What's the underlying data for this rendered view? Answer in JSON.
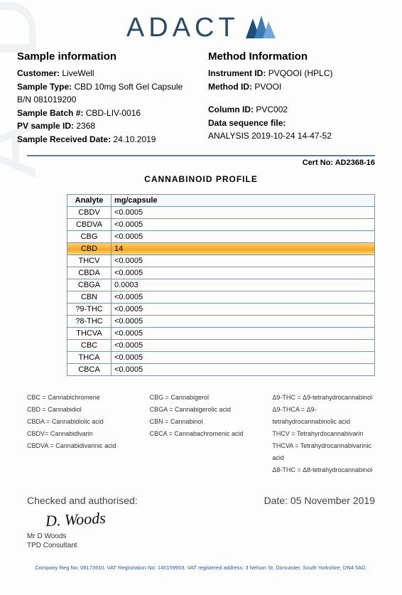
{
  "brand": {
    "name": "ADACT"
  },
  "sample": {
    "heading": "Sample information",
    "customer_label": "Customer:",
    "customer": "LiveWell",
    "type_label": "Sample Type:",
    "type": "CBD 10mg Soft Gel Capsule B/N 081019200",
    "batch_label": "Sample Batch #:",
    "batch": "CBD-LIV-0016",
    "pv_label": "PV sample ID:",
    "pv": "2368",
    "recv_label": "Sample Received Date:",
    "recv": "24.10.2019"
  },
  "method": {
    "heading": "Method Information",
    "instrument_label": "Instrument ID:",
    "instrument": "PVQOOI (HPLC)",
    "method_label": "Method ID:",
    "method_id": "PVOOI",
    "column_label": "Column ID:",
    "column": "PVC002",
    "seq_label": "Data sequence file:",
    "seq": "ANALYSIS 2019-10-24 14-47-52"
  },
  "cert": {
    "label": "Cert No:",
    "value": "AD2368-16"
  },
  "profile": {
    "title": "CANNABINOID  PROFILE",
    "header_analyte": "Analyte",
    "header_value": "mg/capsule",
    "rows": [
      {
        "a": "CBDV",
        "v": "<0.0005",
        "hl": false
      },
      {
        "a": "CBDVA",
        "v": "<0.0005",
        "hl": false
      },
      {
        "a": "CBG",
        "v": "<0.0005",
        "hl": false
      },
      {
        "a": "CBD",
        "v": "14",
        "hl": true
      },
      {
        "a": "THCV",
        "v": "<0.0005",
        "hl": false
      },
      {
        "a": "CBDA",
        "v": "<0.0005",
        "hl": false
      },
      {
        "a": "CBGA",
        "v": "0.0003",
        "hl": false
      },
      {
        "a": "CBN",
        "v": "<0.0005",
        "hl": false
      },
      {
        "a": "?9-THC",
        "v": "<0.0005",
        "hl": false
      },
      {
        "a": "?8-THC",
        "v": "<0.0005",
        "hl": false
      },
      {
        "a": "THCVA",
        "v": "<0.0005",
        "hl": false
      },
      {
        "a": "CBC",
        "v": "<0.0005",
        "hl": false
      },
      {
        "a": "THCA",
        "v": "<0.0005",
        "hl": false
      },
      {
        "a": "CBCA",
        "v": "<0.0005",
        "hl": false
      }
    ]
  },
  "legend": {
    "col1": [
      "CBC = Cannabichromene",
      "CBD = Cannabidiol",
      "CBDA = Cannabidiolic acid",
      "CBDV= Cannabidivarin",
      "CBDVA = Cannabidivarinic acid"
    ],
    "col2": [
      "CBG = Cannabigerol",
      "CBGA = Cannabigerolic acid",
      "CBN = Cannabinol",
      "CBCA = Cannabachromenic acid"
    ],
    "col3": [
      "Δ9-THC = Δ9-tetrahydrocannabinol",
      "Δ9-THCA = Δ9-tetrahydrocannabinolic acid",
      "THCV = Tetrahyrdocannabivarin",
      "THCVA = Tetrahydrocannabivarinic acid",
      "Δ8-THC = Δ8-tetrahydrocannabinol"
    ]
  },
  "auth": {
    "checked": "Checked and authorised:",
    "date_label": "Date:",
    "date": "05 November 2019",
    "signature": "D. Woods",
    "name": "Mr D Woods",
    "role": "TPD Consultant"
  },
  "footer": "Company Reg No: 08173910. VAT Registration No: 145159903. VAT registered address: 3 Nelson St, Doncaster, South Yorkshire, DN4 5AD.",
  "colors": {
    "border": "#7a94af",
    "highlight": "#f5a623",
    "footer": "#2a5b9c",
    "logo_dark": "#1d4e7a",
    "logo_mid": "#3a7bb5",
    "logo_light": "#6fa8d8"
  }
}
